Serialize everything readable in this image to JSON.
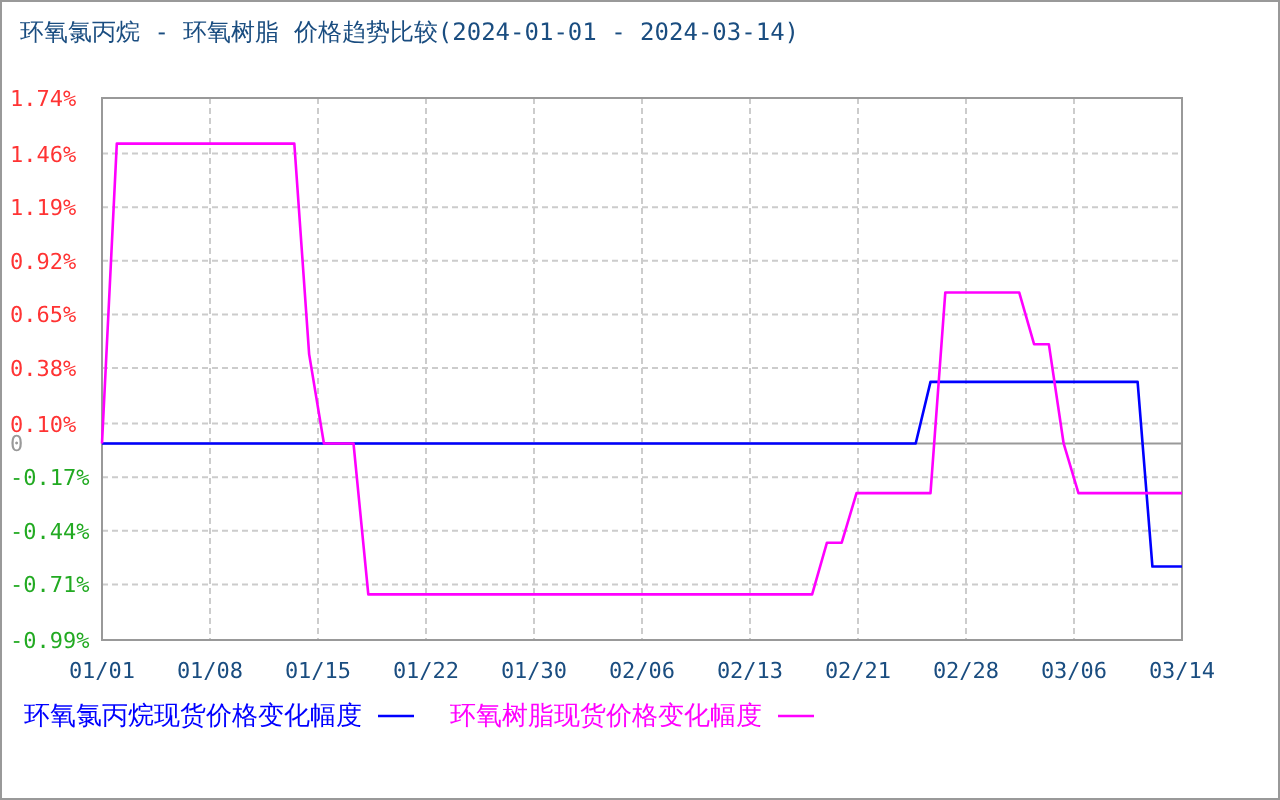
{
  "chart_data": {
    "type": "line",
    "title": "环氧氯丙烷 - 环氧树脂 价格趋势比较(2024-01-01 - 2024-03-14)",
    "xlim": [
      "2024-01-01",
      "2024-03-14"
    ],
    "xticks": [
      {
        "value": "2024-01-01",
        "label": "01/01"
      },
      {
        "value": "2024-01-08T07:12",
        "label": "01/08"
      },
      {
        "value": "2024-01-15T14:24",
        "label": "01/15"
      },
      {
        "value": "2024-01-22T21:36",
        "label": "01/22"
      },
      {
        "value": "2024-01-30T04:48",
        "label": "01/30"
      },
      {
        "value": "2024-02-06T12:00",
        "label": "02/06"
      },
      {
        "value": "2024-02-13T19:12",
        "label": "02/13"
      },
      {
        "value": "2024-02-21T02:24",
        "label": "02/21"
      },
      {
        "value": "2024-02-28T09:36",
        "label": "02/28"
      },
      {
        "value": "2024-03-06T16:48",
        "label": "03/06"
      },
      {
        "value": "2024-03-14",
        "label": "03/14"
      }
    ],
    "ylim": [
      -0.99,
      1.74
    ],
    "yticks": [
      {
        "value": -0.99,
        "label": "-0.99%"
      },
      {
        "value": -0.71,
        "label": "-0.71%"
      },
      {
        "value": -0.44,
        "label": "-0.44%"
      },
      {
        "value": -0.17,
        "label": "-0.17%"
      },
      0,
      {
        "value": 0.1,
        "label": "0.10%"
      },
      {
        "value": 0.38,
        "label": "0.38%"
      },
      {
        "value": 0.65,
        "label": "0.65%"
      },
      {
        "value": 0.92,
        "label": "0.92%"
      },
      {
        "value": 1.19,
        "label": "1.19%"
      },
      {
        "value": 1.46,
        "label": "1.46%"
      },
      {
        "value": 1.74,
        "label": "1.74%"
      }
    ],
    "grid": true,
    "legend": "bottom",
    "marker": "none",
    "line_style": "solid",
    "series": [
      {
        "name": "环氧氯丙烷现货价格变化幅度",
        "color": "#0000ff",
        "x": [
          "2024-01-01",
          "2024-02-25",
          "2024-02-26",
          "2024-03-11",
          "2024-03-12",
          "2024-03-14"
        ],
        "values": [
          0,
          0,
          0.31,
          0.31,
          -0.62,
          -0.62
        ]
      },
      {
        "name": "环氧树脂现货价格变化幅度",
        "color": "#ff00ff",
        "x": [
          "2024-01-01",
          "2024-01-02",
          "2024-01-14",
          "2024-01-15",
          "2024-01-16",
          "2024-01-18",
          "2024-01-19",
          "2024-02-18",
          "2024-02-19",
          "2024-02-20",
          "2024-02-21",
          "2024-02-26",
          "2024-02-27",
          "2024-03-03",
          "2024-03-04",
          "2024-03-05",
          "2024-03-06",
          "2024-03-07",
          "2024-03-14"
        ],
        "values": [
          0,
          1.51,
          1.51,
          0.45,
          0,
          0,
          -0.76,
          -0.76,
          -0.5,
          -0.5,
          -0.25,
          -0.25,
          0.76,
          0.76,
          0.5,
          0.5,
          0,
          -0.25,
          -0.25
        ]
      }
    ]
  }
}
